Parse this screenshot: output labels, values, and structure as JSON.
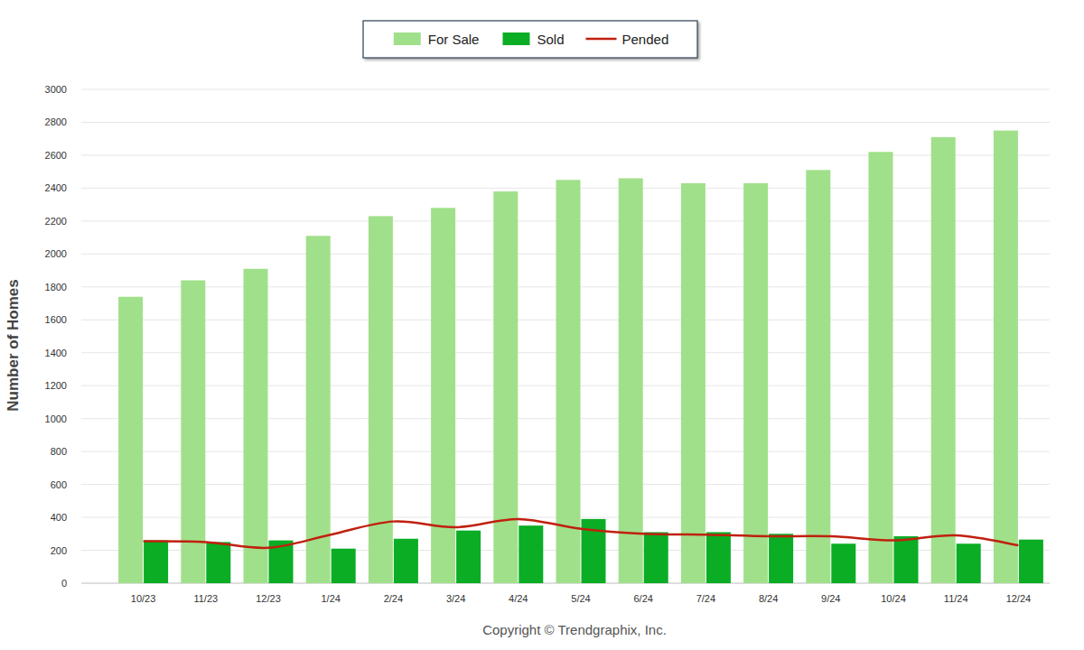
{
  "chart_data": {
    "type": "bar",
    "y_label": "Number of Homes",
    "annotations": [
      "Copyright © Trendgraphix, Inc."
    ],
    "categories": [
      "10/23",
      "11/23",
      "12/23",
      "1/24",
      "2/24",
      "3/24",
      "4/24",
      "5/24",
      "6/24",
      "7/24",
      "8/24",
      "9/24",
      "10/24",
      "11/24",
      "12/24"
    ],
    "series": [
      {
        "name": "For Sale",
        "type": "bar",
        "color": "#a0e08a",
        "values": [
          1740,
          1840,
          1910,
          2110,
          2230,
          2280,
          2380,
          2450,
          2460,
          2430,
          2430,
          2510,
          2620,
          2710,
          2750
        ]
      },
      {
        "name": "Sold",
        "type": "bar",
        "color": "#0aad24",
        "values": [
          260,
          250,
          260,
          210,
          270,
          320,
          350,
          390,
          310,
          310,
          300,
          240,
          285,
          240,
          265
        ]
      },
      {
        "name": "Pended",
        "type": "line",
        "color": "#c0200f",
        "values": [
          255,
          250,
          215,
          295,
          375,
          340,
          390,
          330,
          300,
          295,
          285,
          285,
          260,
          290,
          230
        ]
      }
    ],
    "ylim": [
      0,
      3000
    ],
    "yticks": [
      0,
      200,
      400,
      600,
      800,
      1000,
      1200,
      1400,
      1600,
      1800,
      2000,
      2200,
      2400,
      2600,
      2800,
      3000
    ],
    "grid": true,
    "legend": "top"
  }
}
